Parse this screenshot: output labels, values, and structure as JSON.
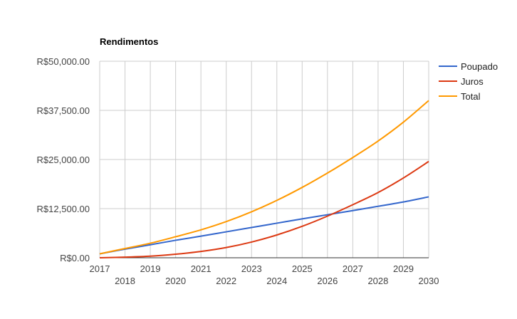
{
  "chart_data": {
    "type": "line",
    "title": "Rendimentos",
    "xlabel": "",
    "ylabel": "",
    "x": [
      2017,
      2018,
      2019,
      2020,
      2021,
      2022,
      2023,
      2024,
      2025,
      2026,
      2027,
      2028,
      2029,
      2030
    ],
    "xlim": [
      2017,
      2030
    ],
    "ylim": [
      0,
      50000
    ],
    "x_ticks_top_row": [
      "2017",
      "2019",
      "2021",
      "2023",
      "2025",
      "2027",
      "2029"
    ],
    "x_ticks_bottom_row": [
      "2018",
      "2020",
      "2022",
      "2024",
      "2026",
      "2028",
      "2030"
    ],
    "y_ticks": [
      {
        "value": 0,
        "label": "R$0.00"
      },
      {
        "value": 12500,
        "label": "R$12,500.00"
      },
      {
        "value": 25000,
        "label": "R$25,000.00"
      },
      {
        "value": 37500,
        "label": "R$37,500.00"
      },
      {
        "value": 50000,
        "label": "R$50,000.00"
      }
    ],
    "grid": true,
    "legend_position": "right",
    "series": [
      {
        "name": "Poupado",
        "color": "#3366cc",
        "values": [
          1000,
          2200,
          3300,
          4450,
          5500,
          6600,
          7700,
          8800,
          9900,
          10950,
          12000,
          13100,
          14200,
          15500
        ]
      },
      {
        "name": "Juros",
        "color": "#dc3912",
        "values": [
          0,
          150,
          400,
          900,
          1600,
          2600,
          4000,
          5800,
          8000,
          10600,
          13500,
          16600,
          20300,
          24500
        ]
      },
      {
        "name": "Total",
        "color": "#ff9900",
        "values": [
          1000,
          2350,
          3700,
          5350,
          7100,
          9200,
          11700,
          14600,
          17900,
          21550,
          25500,
          29700,
          34500,
          40000
        ]
      }
    ]
  }
}
